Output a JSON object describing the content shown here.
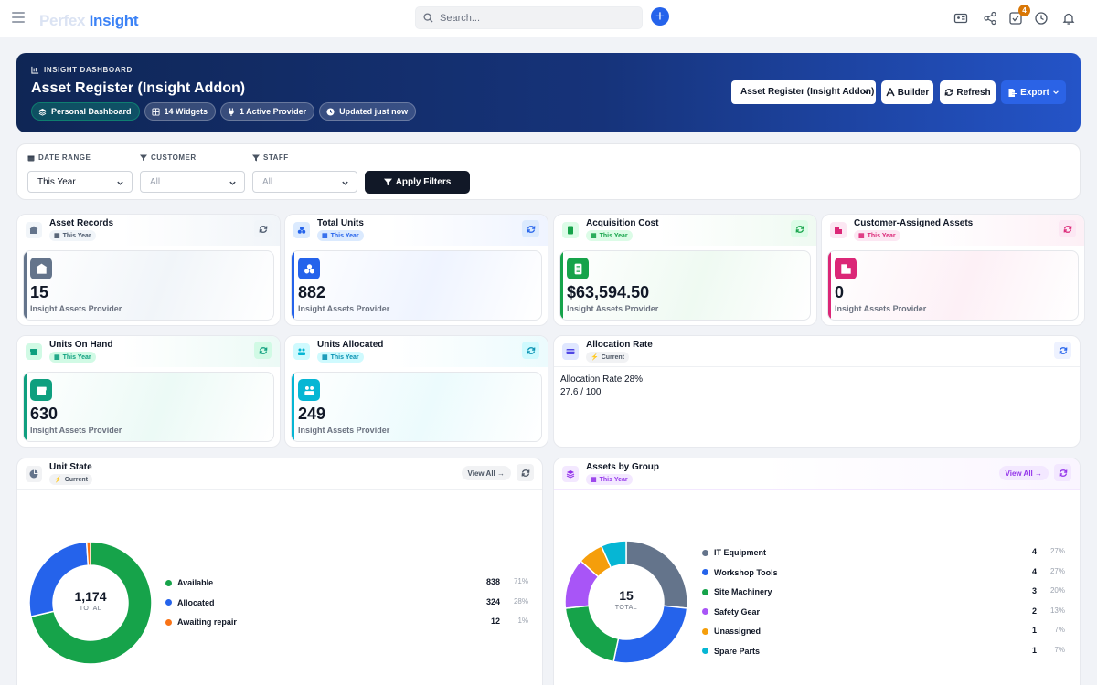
{
  "app": {
    "logo_part1": "Perfex",
    "logo_part2": "Insight",
    "search_placeholder": "Search...",
    "notification_count": "4"
  },
  "hero": {
    "kicker": "INSIGHT DASHBOARD",
    "title": "Asset Register (Insight Addon)",
    "chips": [
      "Personal Dashboard",
      "14 Widgets",
      "1 Active Provider",
      "Updated just now"
    ],
    "dashboard_select": "Asset Register (Insight Addon)",
    "builder_label": "Builder",
    "refresh_label": "Refresh",
    "export_label": "Export"
  },
  "filters": {
    "date_range_label": "DATE RANGE",
    "date_range_value": "This Year",
    "customer_label": "CUSTOMER",
    "customer_value": "All",
    "staff_label": "STAFF",
    "staff_value": "All",
    "apply_label": "Apply Filters"
  },
  "kpis": [
    {
      "title": "Asset Records",
      "period": "This Year",
      "value": "15",
      "provider": "Insight Assets Provider",
      "color": "#64748b"
    },
    {
      "title": "Total Units",
      "period": "This Year",
      "value": "882",
      "provider": "Insight Assets Provider",
      "color": "#2563eb"
    },
    {
      "title": "Acquisition Cost",
      "period": "This Year",
      "value": "$63,594.50",
      "provider": "Insight Assets Provider",
      "color": "#16a34a"
    },
    {
      "title": "Customer-Assigned Assets",
      "period": "This Year",
      "value": "0",
      "provider": "Insight Assets Provider",
      "color": "#db2777"
    },
    {
      "title": "Units On Hand",
      "period": "This Year",
      "value": "630",
      "provider": "Insight Assets Provider",
      "color": "#0f9f7f"
    },
    {
      "title": "Units Allocated",
      "period": "This Year",
      "value": "249",
      "provider": "Insight Assets Provider",
      "color": "#06b6d4"
    }
  ],
  "allocation": {
    "title": "Allocation Rate",
    "period": "Current",
    "line1": "Allocation Rate 28%",
    "line2": "27.6 / 100",
    "rate_percent": 27.6
  },
  "unit_state": {
    "title": "Unit State",
    "period": "Current",
    "view_all": "View All →",
    "total": "1,174",
    "total_label": "TOTAL"
  },
  "assets_by_group": {
    "title": "Assets by Group",
    "period": "This Year",
    "view_all": "View All →",
    "total": "15",
    "total_label": "TOTAL"
  },
  "chart_data": [
    {
      "type": "pie",
      "title": "Unit State",
      "categories": [
        "Available",
        "Allocated",
        "Awaiting repair"
      ],
      "values": [
        838,
        324,
        12
      ],
      "percents": [
        "71%",
        "28%",
        "1%"
      ],
      "colors": [
        "#16a34a",
        "#2563eb",
        "#f97316"
      ],
      "center_total": "1,174"
    },
    {
      "type": "pie",
      "title": "Assets by Group",
      "categories": [
        "IT Equipment",
        "Workshop Tools",
        "Site Machinery",
        "Safety Gear",
        "Unassigned",
        "Spare Parts"
      ],
      "values": [
        4,
        4,
        3,
        2,
        1,
        1
      ],
      "percents": [
        "27%",
        "27%",
        "20%",
        "13%",
        "7%",
        "7%"
      ],
      "colors": [
        "#64748b",
        "#2563eb",
        "#16a34a",
        "#a855f7",
        "#f59e0b",
        "#06b6d4"
      ],
      "center_total": "15"
    }
  ]
}
